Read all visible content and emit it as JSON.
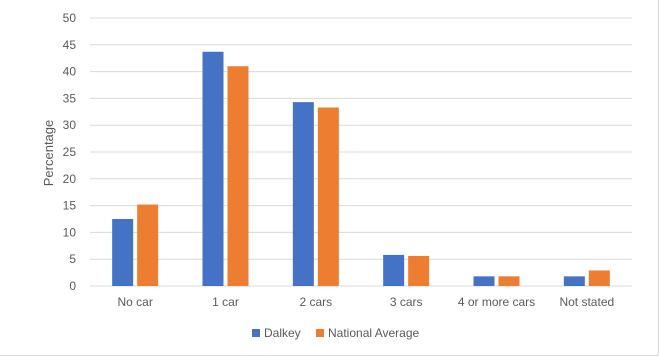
{
  "chart_data": {
    "type": "bar",
    "title": "",
    "xlabel": "",
    "ylabel": "Percentage",
    "ylim": [
      0,
      50
    ],
    "y_ticks": [
      0,
      5,
      10,
      15,
      20,
      25,
      30,
      35,
      40,
      45,
      50
    ],
    "grid": true,
    "legend_position": "bottom",
    "categories": [
      "No car",
      "1 car",
      "2 cars",
      "3 cars",
      "4 or more cars",
      "Not stated"
    ],
    "series": [
      {
        "name": "Dalkey",
        "color": "#4472c4",
        "values": [
          12.5,
          43.7,
          34.3,
          5.8,
          1.8,
          1.8
        ]
      },
      {
        "name": "National Average",
        "color": "#ed7d31",
        "values": [
          15.2,
          41.0,
          33.3,
          5.6,
          1.8,
          2.9
        ]
      }
    ]
  }
}
